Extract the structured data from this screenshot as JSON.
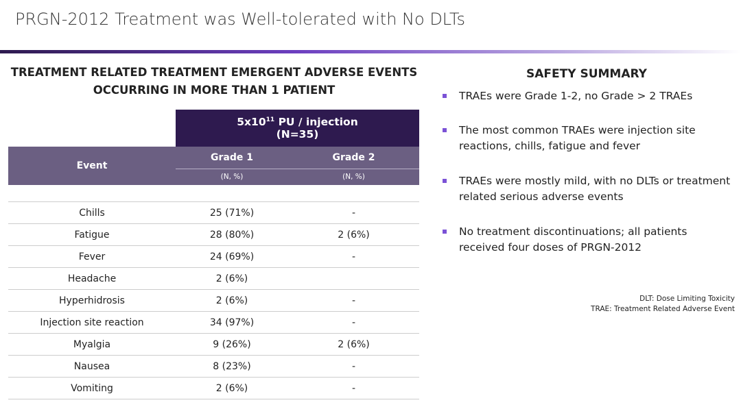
{
  "header": {
    "title": "PRGN-2012 Treatment was Well-tolerated with No DLTs"
  },
  "table": {
    "title_lines": [
      "TREATMENT RELATED TREATMENT EMERGENT ADVERSE EVENTS",
      "OCCURRING IN MORE THAN 1 PATIENT"
    ],
    "dose_base": "5x10",
    "dose_exponent": "11",
    "dose_unit": "PU / injection",
    "dose_n": "(N=35)",
    "event_header": "Event",
    "grade_headers": [
      "Grade 1",
      "Grade 2"
    ],
    "unit_headers": [
      "(N, %)",
      "(N, %)"
    ],
    "rows": [
      [
        "Chills",
        "25 (71%)",
        "-"
      ],
      [
        "Fatigue",
        "28 (80%)",
        "2 (6%)"
      ],
      [
        "Fever",
        "24 (69%)",
        "-"
      ],
      [
        "Headache",
        "2 (6%)",
        null
      ],
      [
        "Hyperhidrosis",
        "2 (6%)",
        "-"
      ],
      [
        "Injection site reaction",
        "34 (97%)",
        "-"
      ],
      [
        "Myalgia",
        "9 (26%)",
        "2 (6%)"
      ],
      [
        "Nausea",
        "8 (23%)",
        "-"
      ],
      [
        "Vomiting",
        "2 (6%)",
        "-"
      ]
    ]
  },
  "summary": {
    "title": "SAFETY SUMMARY",
    "bullets": [
      "TRAEs were Grade 1-2, no Grade > 2 TRAEs",
      "The most common TRAEs were injection site reactions, chills, fatigue and fever",
      "TRAEs were mostly mild, with no DLTs or treatment related serious adverse events",
      "No treatment discontinuations; all patients received four doses of PRGN-2012"
    ],
    "footnotes": [
      "DLT: Dose Limiting Toxicity",
      "TRAE: Treatment Related Adverse Event"
    ]
  }
}
